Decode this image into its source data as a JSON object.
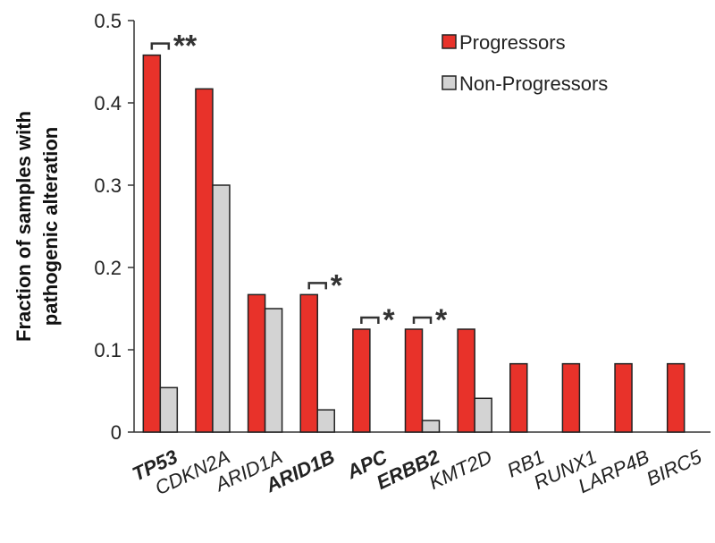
{
  "chart_data": {
    "type": "bar",
    "categories": [
      "TP53",
      "CDKN2A",
      "ARID1A",
      "ARID1B",
      "APC",
      "ERBB2",
      "KMT2D",
      "RB1",
      "RUNX1",
      "LARP4B",
      "BIRC5"
    ],
    "bold_categories": [
      "TP53",
      "ARID1B",
      "APC",
      "ERBB2"
    ],
    "series": [
      {
        "name": "Progressors",
        "color": "#e8322a",
        "values": [
          0.458,
          0.417,
          0.167,
          0.167,
          0.125,
          0.125,
          0.125,
          0.083,
          0.083,
          0.083,
          0.083
        ]
      },
      {
        "name": "Non-Progressors",
        "color": "#d3d3d3",
        "values": [
          0.054,
          0.3,
          0.15,
          0.027,
          0,
          0.014,
          0.041,
          0,
          0,
          0,
          0
        ]
      }
    ],
    "ylabel_lines": [
      "Fraction of samples with",
      "pathogenic alteration"
    ],
    "ylim": [
      0,
      0.5
    ],
    "yticks": [
      "0",
      "0.1",
      "0.2",
      "0.3",
      "0.4",
      "0.5"
    ],
    "ytick_values": [
      0,
      0.1,
      0.2,
      0.3,
      0.4,
      0.5
    ],
    "legend_placement": "top-right",
    "grid": false,
    "significance": [
      {
        "category": "TP53",
        "label": "**"
      },
      {
        "category": "ARID1B",
        "label": "*"
      },
      {
        "category": "APC",
        "label": "*"
      },
      {
        "category": "ERBB2",
        "label": "*"
      }
    ]
  }
}
